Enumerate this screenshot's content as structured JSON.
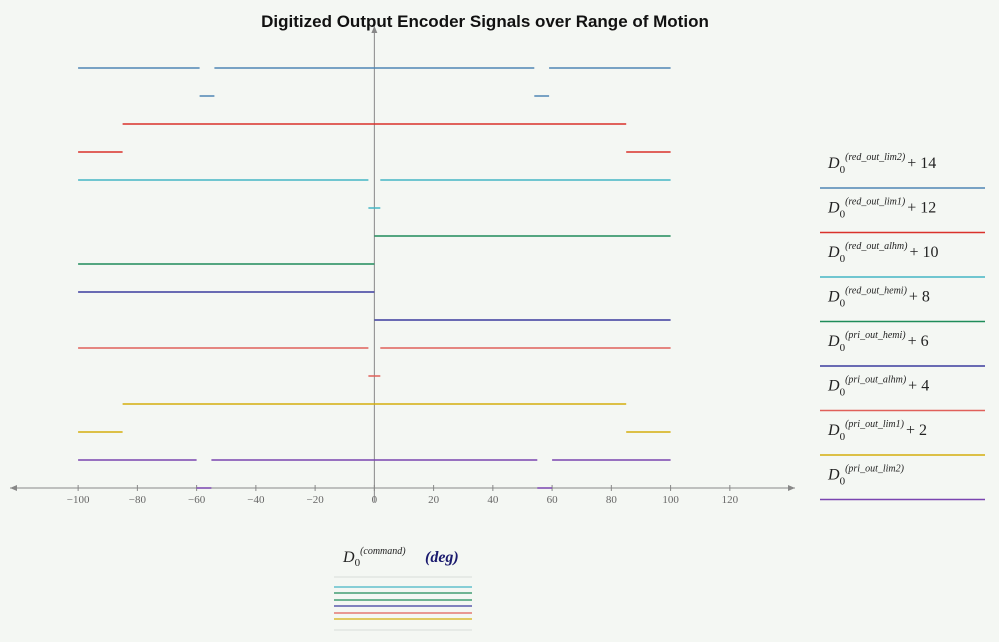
{
  "chart_data": {
    "type": "line",
    "title": "Digitized Output Encoder Signals over Range of Motion",
    "x_label": {
      "symbol": "D",
      "subscript": "0",
      "superscript": "(command)",
      "unit": "(deg)"
    },
    "legend_symbol": "D",
    "legend_subscript": "0",
    "xlim": [
      -123,
      142
    ],
    "ylim": [
      -0.5,
      16.5
    ],
    "xticks": [
      {
        "value": -100,
        "label": "−100"
      },
      {
        "value": -80,
        "label": "−80"
      },
      {
        "value": -60,
        "label": "−60"
      },
      {
        "value": -40,
        "label": "−40"
      },
      {
        "value": -20,
        "label": "−20"
      },
      0,
      20,
      40,
      60,
      80,
      100,
      120
    ],
    "legend_position": "right",
    "series": [
      {
        "name": "(red_out_lim2)",
        "offset_label": "+ 14",
        "color": "#4f86b5",
        "x": [
          -100,
          -59,
          null,
          -59,
          -54,
          null,
          -54,
          54,
          null,
          54,
          59,
          null,
          59,
          100
        ],
        "values": [
          15,
          15,
          null,
          14,
          14,
          null,
          15,
          15,
          null,
          14,
          14,
          null,
          15,
          15
        ]
      },
      {
        "name": "(red_out_lim1)",
        "offset_label": "+ 12",
        "color": "#d9312b",
        "x": [
          -100,
          -85,
          null,
          -85,
          85,
          null,
          85,
          100
        ],
        "values": [
          12,
          12,
          null,
          13,
          13,
          null,
          12,
          12
        ]
      },
      {
        "name": "(red_out_alhm)",
        "offset_label": "+ 10",
        "color": "#45b5c4",
        "x": [
          -100,
          -2,
          null,
          -2,
          2,
          null,
          2,
          100
        ],
        "values": [
          11,
          11,
          null,
          10,
          10,
          null,
          11,
          11
        ]
      },
      {
        "name": "(red_out_hemi)",
        "offset_label": "+ 8",
        "color": "#1e8c5a",
        "x": [
          -100,
          0,
          null,
          0,
          100
        ],
        "values": [
          8,
          8,
          null,
          9,
          9
        ]
      },
      {
        "name": "(pri_out_hemi)",
        "offset_label": "+ 6",
        "color": "#3b3b9e",
        "x": [
          -100,
          0,
          null,
          0,
          100
        ],
        "values": [
          7,
          7,
          null,
          6,
          6
        ]
      },
      {
        "name": "(pri_out_alhm)",
        "offset_label": "+ 4",
        "color": "#e0605a",
        "x": [
          -100,
          -2,
          null,
          -2,
          2,
          null,
          2,
          100
        ],
        "values": [
          5,
          5,
          null,
          4,
          4,
          null,
          5,
          5
        ]
      },
      {
        "name": "(pri_out_lim1)",
        "offset_label": "+ 2",
        "color": "#d4ae0c",
        "x": [
          -100,
          -85,
          null,
          -85,
          85,
          null,
          85,
          100
        ],
        "values": [
          2,
          2,
          null,
          3,
          3,
          null,
          2,
          2
        ]
      },
      {
        "name": "(pri_out_lim2)",
        "color": "#7a45b0",
        "x": [
          -100,
          -60,
          null,
          -60,
          -55,
          null,
          -55,
          55,
          null,
          55,
          60,
          null,
          60,
          100
        ],
        "values": [
          1,
          1,
          null,
          0,
          0,
          null,
          1,
          1,
          null,
          0,
          0,
          null,
          1,
          1
        ]
      }
    ]
  }
}
